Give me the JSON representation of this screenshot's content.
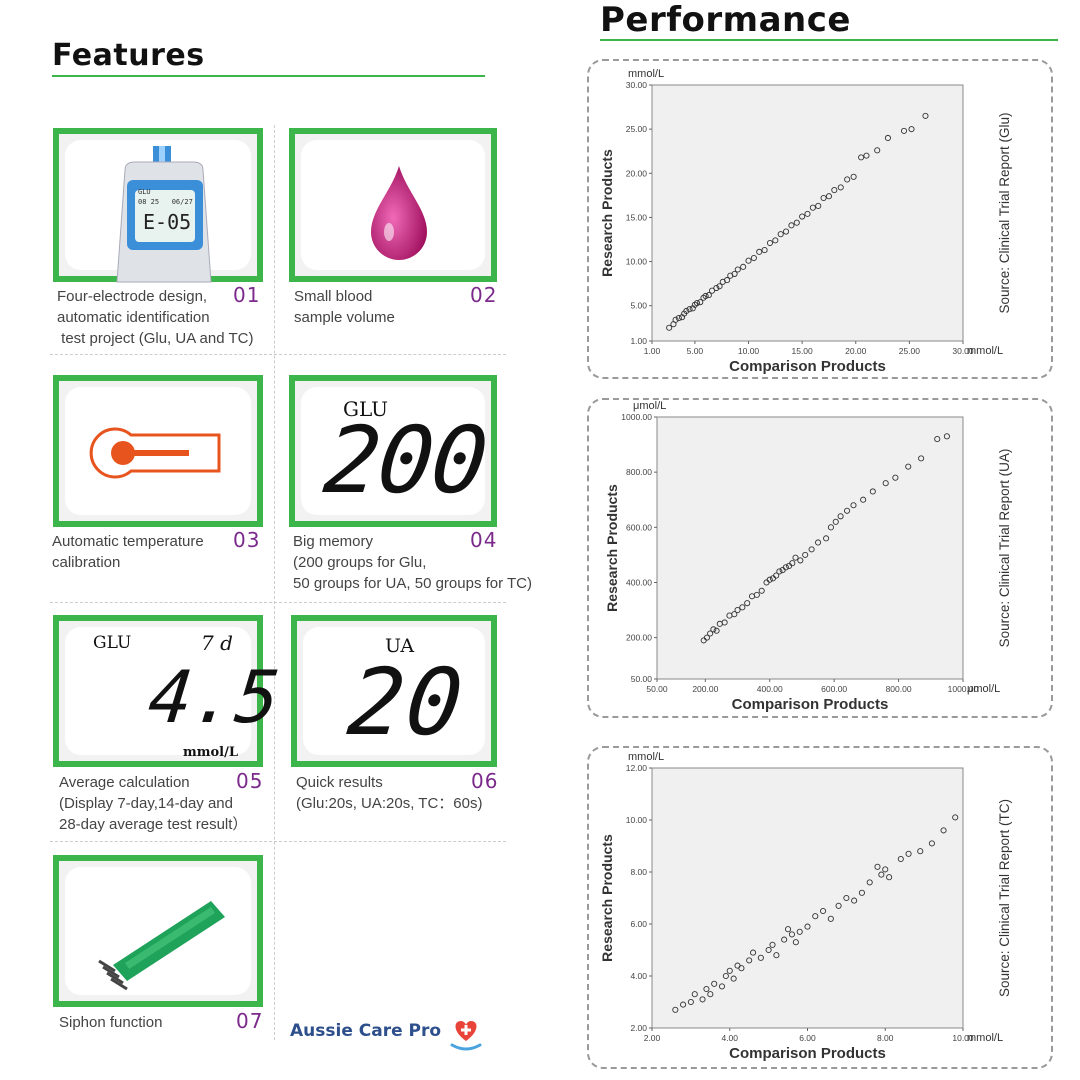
{
  "features": {
    "title": "Features",
    "items": [
      {
        "text": "Four-electrode design,\nautomatic identification\n test project (Glu, UA and TC)",
        "num": "01",
        "icon": "glucose-meter-icon"
      },
      {
        "text": "Small blood\nsample volume",
        "num": "02",
        "icon": "blood-drop-icon"
      },
      {
        "text": "Automatic temperature\ncalibration",
        "num": "03",
        "icon": "thermometer-icon"
      },
      {
        "text": "Big memory\n(200 groups for Glu,\n50 groups for UA, 50 groups for TC)",
        "num": "04",
        "icon": "lcd-memory-icon"
      },
      {
        "text": "Average calculation\n(Display 7-day,14-day and\n28-day average test result）",
        "num": "05",
        "icon": "lcd-average-icon"
      },
      {
        "text": "Quick results\n(Glu:20s, UA:20s, TC：60s)",
        "num": "06",
        "icon": "lcd-quick-icon"
      },
      {
        "text": "Siphon function",
        "num": "07",
        "icon": "test-strip-icon"
      }
    ],
    "lcd": {
      "meter_screen": "E-05",
      "meter_small_left": "GLU",
      "meter_small_row": "08 25   06/27",
      "memory_label": "GLU",
      "memory_value": "200",
      "avg_label": "GLU",
      "avg_days": "7 d",
      "avg_value": "4.5",
      "avg_unit": "mmol/L",
      "quick_label": "UA",
      "quick_value": "20"
    }
  },
  "performance": {
    "title": "Performance",
    "brand": "Aussie Care Pro"
  },
  "colors": {
    "accent_green": "#3cb54a",
    "number_purple": "#7b2a8c",
    "drop_magenta": "#c2187a",
    "thermo_orange": "#e8541e",
    "brand_blue": "#2d4f8b"
  },
  "chart_data": [
    {
      "type": "scatter",
      "title": "",
      "ylabel": "Research Products",
      "xlabel": "Comparison Products",
      "x_unit": "mmol/L",
      "y_unit": "mmol/L",
      "source": "Source: Clinical Trial Report (Glu)",
      "xlim": [
        1,
        30
      ],
      "ylim": [
        1,
        30
      ],
      "xticks": [
        "1.00",
        "5.00",
        "10.00",
        "15.00",
        "20.00",
        "25.00",
        "30.00"
      ],
      "yticks": [
        "1.00",
        "5.00",
        "10.00",
        "15.00",
        "20.00",
        "25.00",
        "30.00"
      ],
      "xtick_values": [
        1,
        5,
        10,
        15,
        20,
        25,
        30
      ],
      "ytick_values": [
        1,
        5,
        10,
        15,
        20,
        25,
        30
      ],
      "x": [
        2.6,
        3.0,
        3.2,
        3.5,
        3.8,
        4.0,
        4.2,
        4.5,
        4.8,
        5.0,
        5.2,
        5.5,
        5.8,
        6.0,
        6.3,
        6.6,
        7.0,
        7.3,
        7.6,
        8.0,
        8.3,
        8.7,
        9.0,
        9.5,
        10.0,
        10.5,
        11.0,
        11.5,
        12.0,
        12.5,
        13.0,
        13.5,
        14.0,
        14.5,
        15.0,
        15.5,
        16.0,
        16.5,
        17.0,
        17.5,
        18.0,
        18.6,
        19.2,
        19.8,
        20.5,
        21.0,
        22.0,
        23.0,
        24.5,
        25.2,
        26.5
      ],
      "y": [
        2.5,
        2.9,
        3.4,
        3.6,
        3.7,
        4.1,
        4.4,
        4.6,
        4.7,
        5.1,
        5.3,
        5.4,
        5.9,
        6.1,
        6.2,
        6.7,
        7.0,
        7.2,
        7.7,
        7.9,
        8.4,
        8.6,
        9.1,
        9.4,
        10.1,
        10.4,
        11.1,
        11.3,
        12.1,
        12.4,
        13.1,
        13.4,
        14.1,
        14.4,
        15.1,
        15.4,
        16.1,
        16.3,
        17.2,
        17.4,
        18.1,
        18.4,
        19.3,
        19.6,
        21.8,
        22.0,
        22.6,
        24.0,
        24.8,
        25.0,
        26.5
      ]
    },
    {
      "type": "scatter",
      "title": "",
      "ylabel": "Research Products",
      "xlabel": "Comparison Products",
      "x_unit": "μmol/L",
      "y_unit": "μmol/L",
      "source": "Source: Clinical Trial Report  (UA)",
      "xlim": [
        50,
        1000
      ],
      "ylim": [
        50,
        1000
      ],
      "xticks": [
        "50.00",
        "200.00",
        "400.00",
        "600.00",
        "800.00",
        "1000.00"
      ],
      "yticks": [
        "50.00",
        "200.00",
        "400.00",
        "600.00",
        "800.00",
        "1000.00"
      ],
      "xtick_values": [
        50,
        200,
        400,
        600,
        800,
        1000
      ],
      "ytick_values": [
        50,
        200,
        400,
        600,
        800,
        1000
      ],
      "x": [
        195,
        205,
        215,
        225,
        235,
        245,
        260,
        275,
        290,
        300,
        315,
        330,
        345,
        360,
        375,
        390,
        400,
        410,
        420,
        430,
        440,
        450,
        460,
        470,
        480,
        495,
        510,
        530,
        550,
        575,
        590,
        605,
        620,
        640,
        660,
        690,
        720,
        760,
        790,
        830,
        870,
        920,
        950
      ],
      "y": [
        190,
        200,
        215,
        230,
        225,
        250,
        255,
        280,
        285,
        300,
        310,
        325,
        350,
        355,
        370,
        400,
        410,
        415,
        425,
        440,
        445,
        455,
        460,
        470,
        490,
        480,
        500,
        520,
        545,
        560,
        600,
        620,
        640,
        660,
        680,
        700,
        730,
        760,
        780,
        820,
        850,
        920,
        930
      ]
    },
    {
      "type": "scatter",
      "title": "",
      "ylabel": "Research Products",
      "xlabel": "Comparison Products",
      "x_unit": "mmol/L",
      "y_unit": "mmol/L",
      "source": "Source: Clinical Trial Report (TC)",
      "xlim": [
        2,
        10
      ],
      "ylim": [
        2,
        12
      ],
      "xticks": [
        "2.00",
        "4.00",
        "6.00",
        "8.00",
        "10.00"
      ],
      "yticks": [
        "2.00",
        "4.00",
        "6.00",
        "8.00",
        "10.00",
        "12.00"
      ],
      "xtick_values": [
        2,
        4,
        6,
        8,
        10
      ],
      "ytick_values": [
        2,
        4,
        6,
        8,
        10,
        12
      ],
      "x": [
        2.6,
        2.8,
        3.0,
        3.1,
        3.3,
        3.4,
        3.5,
        3.6,
        3.8,
        3.9,
        4.0,
        4.1,
        4.2,
        4.3,
        4.5,
        4.6,
        4.8,
        5.0,
        5.1,
        5.2,
        5.4,
        5.5,
        5.6,
        5.7,
        5.8,
        6.0,
        6.2,
        6.4,
        6.6,
        6.8,
        7.0,
        7.2,
        7.4,
        7.6,
        7.8,
        7.9,
        8.0,
        8.1,
        8.4,
        8.6,
        8.9,
        9.2,
        9.5,
        9.8
      ],
      "y": [
        2.7,
        2.9,
        3.0,
        3.3,
        3.1,
        3.5,
        3.3,
        3.7,
        3.6,
        4.0,
        4.2,
        3.9,
        4.4,
        4.3,
        4.6,
        4.9,
        4.7,
        5.0,
        5.2,
        4.8,
        5.4,
        5.8,
        5.6,
        5.3,
        5.7,
        5.9,
        6.3,
        6.5,
        6.2,
        6.7,
        7.0,
        6.9,
        7.2,
        7.6,
        8.2,
        7.9,
        8.1,
        7.8,
        8.5,
        8.7,
        8.8,
        9.1,
        9.6,
        10.1
      ]
    }
  ]
}
